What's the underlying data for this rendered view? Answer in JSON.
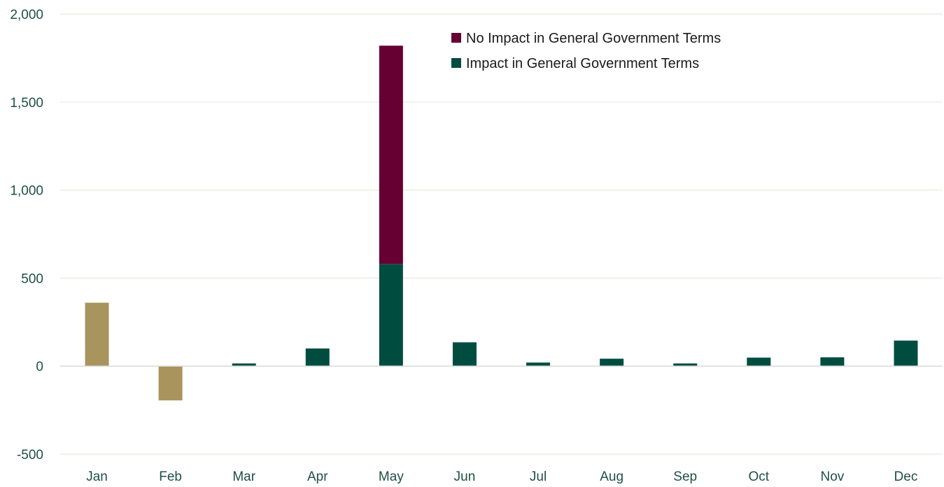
{
  "chart_data": {
    "type": "bar",
    "stacked": true,
    "categories": [
      "Jan",
      "Feb",
      "Mar",
      "Apr",
      "May",
      "Jun",
      "Jul",
      "Aug",
      "Sep",
      "Oct",
      "Nov",
      "Dec"
    ],
    "series": [
      {
        "name": "Impact in General Government Terms",
        "color": "#004d40",
        "values": [
          null,
          null,
          15,
          100,
          580,
          135,
          20,
          42,
          15,
          48,
          50,
          145
        ]
      },
      {
        "name": "No Impact in General Government Terms",
        "color": "#660033",
        "values": [
          null,
          null,
          0,
          0,
          1240,
          0,
          0,
          0,
          0,
          0,
          0,
          0
        ]
      },
      {
        "name": "",
        "color": "#a8945c",
        "values": [
          360,
          -195,
          null,
          null,
          null,
          null,
          null,
          null,
          null,
          null,
          null,
          null
        ]
      }
    ],
    "ylim": [
      -500,
      2000
    ],
    "y_ticks": [
      -500,
      0,
      500,
      1000,
      1500,
      2000
    ],
    "y_tick_labels": [
      "-500",
      "0",
      "500",
      "1,000",
      "1,500",
      "2,000"
    ],
    "grid": true,
    "legend_position": "top-right",
    "legend": [
      {
        "label": "No Impact in General Government Terms",
        "color": "#660033"
      },
      {
        "label": "Impact in General Government Terms",
        "color": "#004d40"
      }
    ],
    "title": "",
    "xlabel": "",
    "ylabel": ""
  }
}
